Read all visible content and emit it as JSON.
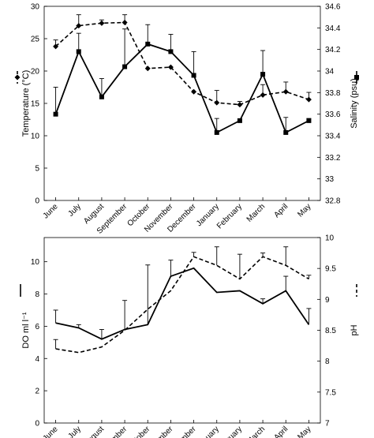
{
  "chart_data": [
    {
      "type": "line",
      "categories": [
        "June",
        "July",
        "August",
        "September",
        "October",
        "November",
        "December",
        "January",
        "February",
        "March",
        "April",
        "May"
      ],
      "ylabel": "Temperature (°C)",
      "y2label": "Salinity (psu)",
      "ylim": [
        0,
        30
      ],
      "yticks": [
        "0",
        "5",
        "10",
        "15",
        "20",
        "25",
        "30"
      ],
      "y2lim": [
        32.8,
        34.6
      ],
      "y2ticks": [
        "32.8",
        "33",
        "33.2",
        "33.4",
        "33.6",
        "33.8",
        "34",
        "34.2",
        "34.4",
        "34.6"
      ],
      "grid": false,
      "series": [
        {
          "axis": "right",
          "style": "solid",
          "marker": "square",
          "values": [
            33.6,
            34.18,
            33.76,
            34.04,
            34.25,
            34.18,
            33.96,
            33.43,
            33.54,
            33.97,
            33.43,
            33.54
          ],
          "errors": [
            0.25,
            0.17,
            0.17,
            0.35,
            0.18,
            0.16,
            0.22,
            0.13,
            0.0,
            0.22,
            0.14,
            0.02
          ]
        },
        {
          "axis": "left",
          "style": "dashed",
          "marker": "diamond",
          "values": [
            23.8,
            27.0,
            27.4,
            27.5,
            20.4,
            20.6,
            16.8,
            15.1,
            14.8,
            16.3,
            16.8,
            15.6
          ],
          "errors": [
            1.0,
            1.7,
            0.5,
            1.2,
            0.0,
            0.0,
            0.0,
            1.9,
            0.5,
            1.6,
            1.5,
            1.1
          ]
        }
      ]
    },
    {
      "type": "line",
      "categories": [
        "June",
        "July",
        "August",
        "September",
        "October",
        "November",
        "December",
        "January",
        "February",
        "March",
        "April",
        "May"
      ],
      "ylabel": "DO ml l⁻¹",
      "y2label": "pH",
      "ylim": [
        0,
        11.5
      ],
      "yticks": [
        "0",
        "2",
        "4",
        "6",
        "8",
        "10"
      ],
      "y2lim": [
        7,
        10
      ],
      "y2ticks": [
        "7",
        "7.5",
        "8",
        "8.5",
        "9",
        "9.5",
        "10"
      ],
      "grid": false,
      "series": [
        {
          "axis": "left",
          "style": "solid",
          "values": [
            6.2,
            5.9,
            5.2,
            5.8,
            6.1,
            9.1,
            9.6,
            8.1,
            8.2,
            7.4,
            8.2,
            6.1
          ],
          "errors": [
            0.8,
            0.2,
            0.6,
            1.8,
            3.7,
            1.0,
            0.0,
            0.0,
            0.0,
            0.3,
            0.9,
            1.0
          ]
        },
        {
          "axis": "right",
          "style": "dashed",
          "values": [
            8.2,
            8.14,
            8.23,
            8.5,
            8.84,
            9.14,
            9.69,
            9.55,
            9.33,
            9.69,
            9.55,
            9.33
          ],
          "errors": [
            0.15,
            0.0,
            0.0,
            0.0,
            0.0,
            0.0,
            0.07,
            0.3,
            0.4,
            0.06,
            0.3,
            0.06
          ]
        }
      ]
    }
  ]
}
